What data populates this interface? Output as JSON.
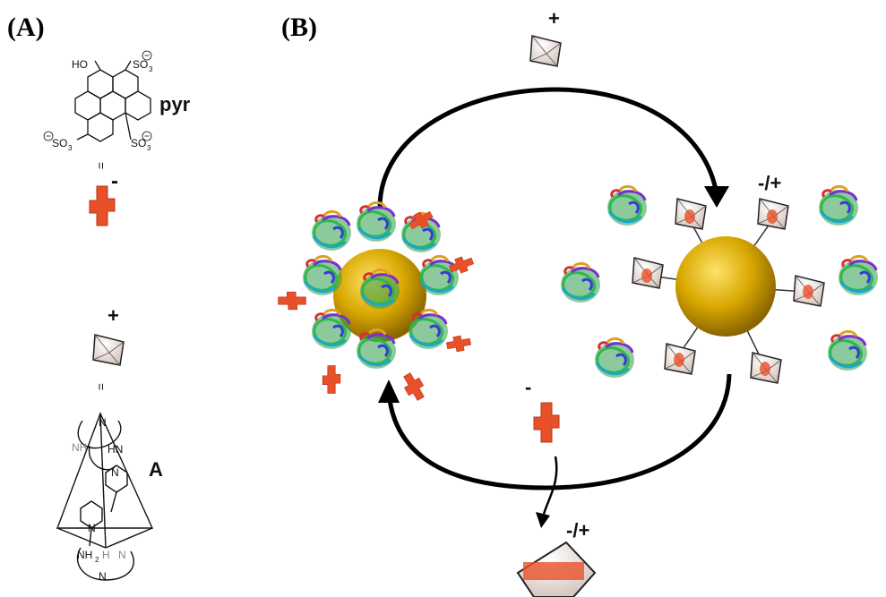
{
  "panel_a": {
    "label": "(A)",
    "pyr": {
      "name": "pyr",
      "oh": "HO",
      "so3_1": "SO",
      "so3_2": "SO",
      "so3_3": "SO",
      "sub3": "3",
      "charge_minus": "-"
    },
    "equals": "=",
    "cage": {
      "name": "A",
      "charge_plus": "+",
      "n_top": "N",
      "nh_left": "NH",
      "hn_right": "HN",
      "n_mid": "N",
      "n_left": "N",
      "nh2_bottom": "NH",
      "nh2_sub": "2",
      "h_bottom": "H",
      "n_bottom_right": "N",
      "n_bottom": "N"
    }
  },
  "panel_b": {
    "label": "(B)",
    "top_charge": "+",
    "right_charge": "-/+",
    "guest_charge": "-",
    "bottom_charge": "-/+"
  },
  "colors": {
    "guest": "#e8502a",
    "cage_fill": "#e9dcd6",
    "gold": "#d9a800",
    "arrow": "#000000"
  }
}
